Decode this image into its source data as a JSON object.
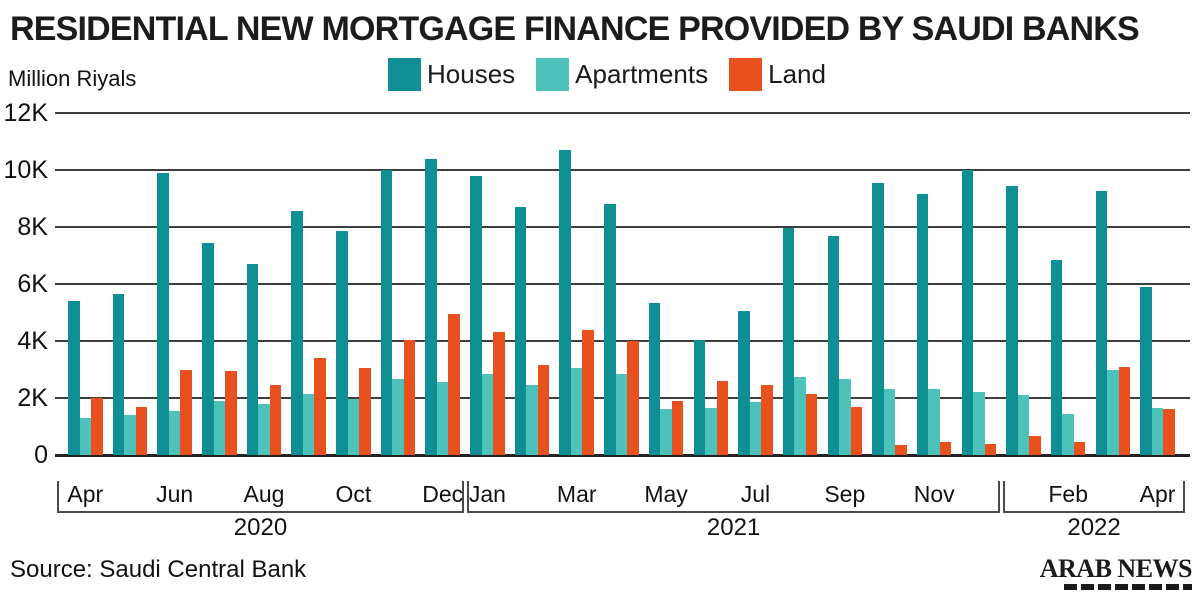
{
  "title": "RESIDENTIAL NEW MORTGAGE FINANCE PROVIDED BY SAUDI BANKS",
  "y_axis_unit_label": "Million Riyals",
  "legend": [
    {
      "label": "Houses",
      "color": "#0E8F94"
    },
    {
      "label": "Apartments",
      "color": "#4CC2BB"
    },
    {
      "label": "Land",
      "color": "#E8501D"
    }
  ],
  "source": "Source: Saudi Central Bank",
  "logo": {
    "line1": "ARAB NEWS"
  },
  "chart_data": {
    "type": "bar",
    "title": "RESIDENTIAL NEW MORTGAGE FINANCE PROVIDED BY SAUDI BANKS",
    "ylabel": "Million Riyals",
    "ylim": [
      0,
      12000
    ],
    "grid": "horizontal",
    "legend_position": "top-center",
    "yticks": [
      {
        "label": "12K",
        "value": 12000
      },
      {
        "label": "10K",
        "value": 10000
      },
      {
        "label": "8K",
        "value": 8000
      },
      {
        "label": "6K",
        "value": 6000
      },
      {
        "label": "4K",
        "value": 4000
      },
      {
        "label": "2K",
        "value": 2000
      },
      {
        "label": "0",
        "value": 0
      }
    ],
    "categories": [
      "Apr 2020",
      "May 2020",
      "Jun 2020",
      "Jul 2020",
      "Aug 2020",
      "Sep 2020",
      "Oct 2020",
      "Nov 2020",
      "Dec 2020",
      "Jan 2021",
      "Feb 2021",
      "Mar 2021",
      "Apr 2021",
      "May 2021",
      "Jun 2021",
      "Jul 2021",
      "Aug 2021",
      "Sep 2021",
      "Oct 2021",
      "Nov 2021",
      "Dec 2021",
      "Jan 2022",
      "Feb 2022",
      "Mar 2022",
      "Apr 2022"
    ],
    "series": [
      {
        "name": "Houses",
        "color": "#0E8F94",
        "values": [
          5400,
          5650,
          9900,
          7450,
          6700,
          8550,
          7850,
          10000,
          10400,
          9800,
          8700,
          10700,
          8800,
          5350,
          4050,
          5050,
          7950,
          7700,
          9550,
          9150,
          10000,
          9450,
          6850,
          9250,
          5900
        ]
      },
      {
        "name": "Apartments",
        "color": "#4CC2BB",
        "values": [
          1300,
          1400,
          1550,
          1900,
          1800,
          2150,
          1950,
          2650,
          2550,
          2850,
          2450,
          3050,
          2850,
          1600,
          1650,
          1850,
          2750,
          2650,
          2300,
          2300,
          2200,
          2100,
          1450,
          3000,
          1650
        ]
      },
      {
        "name": "Land",
        "color": "#E8501D",
        "values": [
          2000,
          1700,
          3000,
          2950,
          2450,
          3400,
          3050,
          4050,
          4950,
          4300,
          3150,
          4400,
          4000,
          1900,
          2600,
          2450,
          2150,
          1700,
          350,
          450,
          400,
          650,
          450,
          3100,
          1600
        ]
      }
    ],
    "x_month_labels": [
      {
        "index": 0,
        "text": "Apr"
      },
      {
        "index": 2,
        "text": "Jun"
      },
      {
        "index": 4,
        "text": "Aug"
      },
      {
        "index": 6,
        "text": "Oct"
      },
      {
        "index": 8,
        "text": "Dec"
      },
      {
        "index": 9,
        "text": "Jan"
      },
      {
        "index": 11,
        "text": "Mar"
      },
      {
        "index": 13,
        "text": "May"
      },
      {
        "index": 15,
        "text": "Jul"
      },
      {
        "index": 17,
        "text": "Sep"
      },
      {
        "index": 19,
        "text": "Nov"
      },
      {
        "index": 22,
        "text": "Feb"
      },
      {
        "index": 24,
        "text": "Apr"
      }
    ],
    "year_groups": [
      {
        "label": "2020",
        "start": 0,
        "end": 8
      },
      {
        "label": "2021",
        "start": 9,
        "end": 20
      },
      {
        "label": "2022",
        "start": 21,
        "end": 24
      }
    ]
  }
}
